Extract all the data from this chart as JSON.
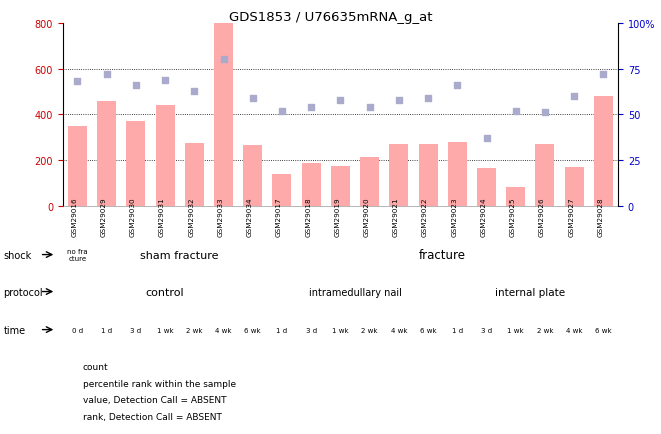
{
  "title": "GDS1853 / U76635mRNA_g_at",
  "samples": [
    "GSM29016",
    "GSM29029",
    "GSM29030",
    "GSM29031",
    "GSM29032",
    "GSM29033",
    "GSM29034",
    "GSM29017",
    "GSM29018",
    "GSM29019",
    "GSM29020",
    "GSM29021",
    "GSM29022",
    "GSM29023",
    "GSM29024",
    "GSM29025",
    "GSM29026",
    "GSM29027",
    "GSM29028"
  ],
  "bar_values": [
    350,
    460,
    370,
    440,
    275,
    800,
    265,
    140,
    185,
    175,
    215,
    270,
    270,
    280,
    165,
    80,
    270,
    170,
    480
  ],
  "rank_values": [
    68,
    72,
    66,
    69,
    63,
    80,
    59,
    52,
    54,
    58,
    54,
    58,
    59,
    66,
    37,
    52,
    51,
    60,
    72
  ],
  "bar_color": "#ffaaaa",
  "rank_color": "#aaaacc",
  "ylim_left": [
    0,
    800
  ],
  "ylim_right": [
    0,
    100
  ],
  "yticks_left": [
    0,
    200,
    400,
    600,
    800
  ],
  "yticks_right": [
    0,
    25,
    50,
    75,
    100
  ],
  "left_axis_color": "#cc0000",
  "right_axis_color": "#0000cc",
  "bg_color": "#ffffff",
  "shock_no_frac_color": "#cccccc",
  "shock_sham_color": "#88cc88",
  "shock_frac_color": "#88cc88",
  "protocol_ctrl_color": "#bbbbee",
  "protocol_imn_color": "#bbbbee",
  "protocol_ip_color": "#6666bb",
  "time_colors": [
    "#ffcccc",
    "#ffcccc",
    "#ffcccc",
    "#ffcccc",
    "#ffbbbb",
    "#ffaaaa",
    "#ff8888",
    "#ffcccc",
    "#ffcccc",
    "#ffcccc",
    "#ffbbbb",
    "#ffaaaa",
    "#ff8888",
    "#ffcccc",
    "#ffcccc",
    "#ffcccc",
    "#ffbbbb",
    "#ffaaaa",
    "#ff8888"
  ],
  "time_labels": [
    "0 d",
    "1 d",
    "3 d",
    "1 wk",
    "2 wk",
    "4 wk",
    "6 wk",
    "1 d",
    "3 d",
    "1 wk",
    "2 wk",
    "4 wk",
    "6 wk",
    "1 d",
    "3 d",
    "1 wk",
    "2 wk",
    "4 wk",
    "6 wk"
  ],
  "legend_items": [
    {
      "label": "count",
      "color": "#cc0000"
    },
    {
      "label": "percentile rank within the sample",
      "color": "#2222aa"
    },
    {
      "label": "value, Detection Call = ABSENT",
      "color": "#ffaaaa"
    },
    {
      "label": "rank, Detection Call = ABSENT",
      "color": "#aaaacc"
    }
  ]
}
